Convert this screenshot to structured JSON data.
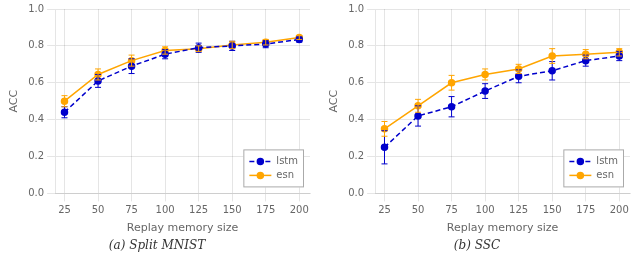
{
  "chart_data": [
    {
      "type": "line",
      "title": "(a) Split MNIST",
      "xlabel": "Replay memory size",
      "ylabel": "ACC",
      "x": [
        25,
        50,
        75,
        100,
        125,
        150,
        175,
        200
      ],
      "series": [
        {
          "name": "lstm",
          "color": "#0000cc",
          "line_style": "dashed",
          "marker": "circle",
          "values": [
            0.44,
            0.61,
            0.69,
            0.755,
            0.79,
            0.8,
            0.81,
            0.835
          ],
          "errors": [
            0.03,
            0.035,
            0.04,
            0.025,
            0.025,
            0.025,
            0.02,
            0.015
          ]
        },
        {
          "name": "esn",
          "color": "#ffa500",
          "line_style": "solid",
          "marker": "circle",
          "values": [
            0.5,
            0.645,
            0.72,
            0.775,
            0.785,
            0.805,
            0.82,
            0.845
          ],
          "errors": [
            0.03,
            0.03,
            0.03,
            0.02,
            0.015,
            0.02,
            0.015,
            0.01
          ]
        }
      ],
      "xlim": [
        18,
        208
      ],
      "xticks": [
        25,
        50,
        75,
        100,
        125,
        150,
        175,
        200
      ],
      "ylim": [
        0.0,
        1.0
      ],
      "yticks": [
        {
          "value": 0.0,
          "label": "0.0"
        },
        0.2,
        0.4,
        0.6,
        0.8,
        {
          "value": 1.0,
          "label": "1.0"
        }
      ],
      "grid": true,
      "legend": "lower right"
    },
    {
      "type": "line",
      "title": "(b) SSC",
      "xlabel": "Replay memory size",
      "ylabel": "ACC",
      "x": [
        25,
        50,
        75,
        100,
        125,
        150,
        175,
        200
      ],
      "series": [
        {
          "name": "lstm",
          "color": "#0000cc",
          "line_style": "dashed",
          "marker": "circle",
          "values": [
            0.25,
            0.42,
            0.47,
            0.555,
            0.635,
            0.665,
            0.72,
            0.745
          ],
          "errors": [
            0.09,
            0.055,
            0.055,
            0.04,
            0.035,
            0.05,
            0.03,
            0.025
          ]
        },
        {
          "name": "esn",
          "color": "#ffa500",
          "line_style": "solid",
          "marker": "circle",
          "values": [
            0.35,
            0.475,
            0.6,
            0.645,
            0.675,
            0.745,
            0.755,
            0.765
          ],
          "errors": [
            0.04,
            0.035,
            0.04,
            0.03,
            0.025,
            0.04,
            0.025,
            0.02
          ]
        }
      ],
      "xlim": [
        18,
        208
      ],
      "xticks": [
        25,
        50,
        75,
        100,
        125,
        150,
        175,
        200
      ],
      "ylim": [
        0.0,
        1.0
      ],
      "yticks": [
        {
          "value": 0.0,
          "label": "0.0"
        },
        0.2,
        0.4,
        0.6,
        0.8,
        {
          "value": 1.0,
          "label": "1.0"
        }
      ],
      "grid": true,
      "legend": "lower right"
    }
  ]
}
